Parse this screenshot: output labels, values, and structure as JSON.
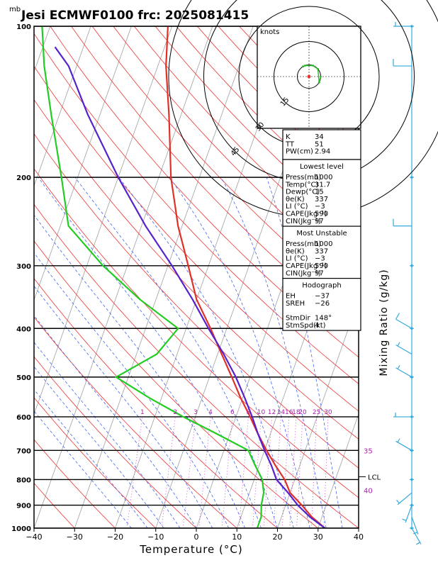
{
  "header": {
    "title": "Jesi ECMWF0100 frc: 2025081415",
    "pressure_unit": "mb"
  },
  "chart_data": {
    "type": "line",
    "xlabel": "Temperature (°C)",
    "ylabel": "Mixing Ratio (g/kg)",
    "xlim": [
      -40,
      40
    ],
    "ylim": [
      1000,
      100
    ],
    "y_scale": "log",
    "x_ticks": [
      "−40",
      "−30",
      "−20",
      "−10",
      "0",
      "10",
      "20",
      "30",
      "40"
    ],
    "y_ticks": [
      {
        "p": 100,
        "label": "100"
      },
      {
        "p": 200,
        "label": "200"
      },
      {
        "p": 300,
        "label": "300"
      },
      {
        "p": 400,
        "label": "400"
      },
      {
        "p": 500,
        "label": "500"
      },
      {
        "p": 600,
        "label": "600"
      },
      {
        "p": 700,
        "label": "700"
      },
      {
        "p": 800,
        "label": "800"
      },
      {
        "p": 900,
        "label": "900"
      },
      {
        "p": 1000,
        "label": "1000"
      }
    ],
    "mixing_ratio_labels": [
      {
        "w": 1,
        "label": "1"
      },
      {
        "w": 2,
        "label": "2"
      },
      {
        "w": 3,
        "label": "3"
      },
      {
        "w": 4,
        "label": "4"
      },
      {
        "w": 6,
        "label": "6"
      },
      {
        "w": 8,
        "label": "8"
      },
      {
        "w": 10,
        "label": "10"
      },
      {
        "w": 12,
        "label": "12"
      },
      {
        "w": 14,
        "label": "14"
      },
      {
        "w": 16,
        "label": "16"
      },
      {
        "w": 18,
        "label": "18"
      },
      {
        "w": 20,
        "label": "20"
      },
      {
        "w": 25,
        "label": "25"
      },
      {
        "w": 30,
        "label": "30"
      }
    ],
    "theta_e_labels": [
      {
        "p": 700,
        "label": "35"
      },
      {
        "p": 840,
        "label": "40"
      }
    ],
    "lcl": {
      "p": 790,
      "label": "LCL"
    },
    "series": [
      {
        "color": "#e0302a",
        "points": [
          [
            31.7,
            1000
          ],
          [
            27.5,
            950
          ],
          [
            24,
            900
          ],
          [
            20,
            850
          ],
          [
            17.5,
            800
          ],
          [
            14,
            750
          ],
          [
            10.5,
            700
          ],
          [
            7,
            650
          ],
          [
            3.5,
            600
          ],
          [
            -0.5,
            550
          ],
          [
            -4.5,
            500
          ],
          [
            -9,
            450
          ],
          [
            -14,
            400
          ],
          [
            -20,
            350
          ],
          [
            -25,
            300
          ],
          [
            -31,
            250
          ],
          [
            -37,
            200
          ],
          [
            -43,
            150
          ],
          [
            -48,
            120
          ],
          [
            -51,
            100
          ]
        ]
      },
      {
        "color": "#22cc22",
        "points": [
          [
            15,
            1000
          ],
          [
            15,
            950
          ],
          [
            14,
            900
          ],
          [
            13.5,
            850
          ],
          [
            12,
            800
          ],
          [
            9,
            750
          ],
          [
            6,
            700
          ],
          [
            -3,
            650
          ],
          [
            -13,
            600
          ],
          [
            -23,
            550
          ],
          [
            -33,
            500
          ],
          [
            -25,
            450
          ],
          [
            -22,
            400
          ],
          [
            -34,
            350
          ],
          [
            -46,
            300
          ],
          [
            -58,
            250
          ],
          [
            -64,
            200
          ],
          [
            -72,
            150
          ],
          [
            -78,
            120
          ],
          [
            -82,
            100
          ]
        ]
      },
      {
        "color": "#5522cc",
        "points": [
          [
            31.7,
            1000
          ],
          [
            27,
            950
          ],
          [
            23,
            900
          ],
          [
            19.5,
            850
          ],
          [
            15.5,
            800
          ],
          [
            13,
            750
          ],
          [
            10,
            700
          ],
          [
            7,
            650
          ],
          [
            4,
            600
          ],
          [
            0.5,
            550
          ],
          [
            -3.5,
            500
          ],
          [
            -8.5,
            450
          ],
          [
            -14.5,
            400
          ],
          [
            -21,
            350
          ],
          [
            -29,
            300
          ],
          [
            -39,
            250
          ],
          [
            -50,
            200
          ],
          [
            -63,
            150
          ],
          [
            -72,
            120
          ],
          [
            -77,
            110
          ]
        ]
      }
    ],
    "wind_barbs": [
      {
        "p": 1000,
        "dir": 150,
        "spd": 5
      },
      {
        "p": 950,
        "dir": 160,
        "spd": 5
      },
      {
        "p": 900,
        "dir": 200,
        "spd": 5
      },
      {
        "p": 850,
        "dir": 230,
        "spd": 5
      },
      {
        "p": 700,
        "dir": 300,
        "spd": 5
      },
      {
        "p": 600,
        "dir": 270,
        "spd": 5
      },
      {
        "p": 500,
        "dir": 300,
        "spd": 5
      },
      {
        "p": 450,
        "dir": 300,
        "spd": 5
      },
      {
        "p": 400,
        "dir": 300,
        "spd": 10
      },
      {
        "p": 250,
        "dir": 270,
        "spd": 10
      },
      {
        "p": 120,
        "dir": 270,
        "spd": 10
      },
      {
        "p": 100,
        "dir": 270,
        "spd": 5
      }
    ]
  },
  "hodograph": {
    "unit": "knots",
    "ring_labels": [
      {
        "kt": 15,
        "label": "15"
      },
      {
        "kt": 30,
        "label": "30"
      },
      {
        "kt": 45,
        "label": "45"
      }
    ]
  },
  "indices": {
    "top": [
      {
        "k": "K",
        "v": "34"
      },
      {
        "k": "TT",
        "v": "51"
      },
      {
        "k": "PW(cm)",
        "v": "2.94"
      }
    ],
    "lowest": {
      "title": "Lowest level",
      "rows": [
        {
          "k": "Press(mb)",
          "v": "1000"
        },
        {
          "k": "Temp(°C)",
          "v": "31.7"
        },
        {
          "k": "Dewp(°C)",
          "v": "15"
        },
        {
          "k": "θe(K)",
          "v": "337"
        },
        {
          "k": "LI (°C)",
          "v": "−3"
        },
        {
          "k": "CAPE(Jkg⁻¹)",
          "v": "590"
        },
        {
          "k": "CIN(Jkg⁻¹)",
          "v": "97"
        }
      ]
    },
    "unstable": {
      "title": "Most Unstable",
      "rows": [
        {
          "k": "Press(mb)",
          "v": "1000"
        },
        {
          "k": "θe(K)",
          "v": "337"
        },
        {
          "k": "LI (°C)",
          "v": "−3"
        },
        {
          "k": "CAPE(Jkg⁻¹)",
          "v": "590"
        },
        {
          "k": "CIN(Jkg⁻¹)",
          "v": "97"
        }
      ]
    },
    "hodo": {
      "title": "Hodograph",
      "rows": [
        {
          "k": "EH",
          "v": "−37"
        },
        {
          "k": "SREH",
          "v": "−26"
        },
        {
          "k": "",
          "v": ""
        },
        {
          "k": "StmDir",
          "v": "148°"
        },
        {
          "k": "StmSpd(kt)",
          "v": "4"
        }
      ]
    }
  }
}
